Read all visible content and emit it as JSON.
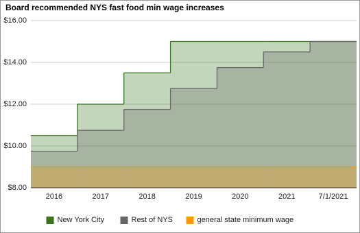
{
  "chart_data": {
    "type": "step-area",
    "title": "Board recommended NYS fast food min wage increases",
    "categories": [
      "2016",
      "2017",
      "2018",
      "2019",
      "2020",
      "2021",
      "7/1/2021"
    ],
    "series": [
      {
        "name": "New York City",
        "color": "#38761d",
        "values": [
          10.5,
          12,
          13.5,
          15,
          15,
          15,
          15
        ]
      },
      {
        "name": "Rest of NYS",
        "color": "#666666",
        "values": [
          9.75,
          10.75,
          11.75,
          12.75,
          13.75,
          14.5,
          15
        ]
      },
      {
        "name": "general state minimum wage",
        "color": "#ff9900",
        "values": [
          9,
          9,
          9,
          9,
          9,
          9,
          9
        ]
      }
    ],
    "ylim": [
      8,
      16
    ],
    "yticks": [
      {
        "value": 8,
        "label": "$8.00"
      },
      {
        "value": 10,
        "label": "$10.00"
      },
      {
        "value": 12,
        "label": "$12.00"
      },
      {
        "value": 14,
        "label": "$14.00"
      },
      {
        "value": 16,
        "label": "$16.00"
      }
    ],
    "grid": true,
    "legend": "bottom"
  }
}
